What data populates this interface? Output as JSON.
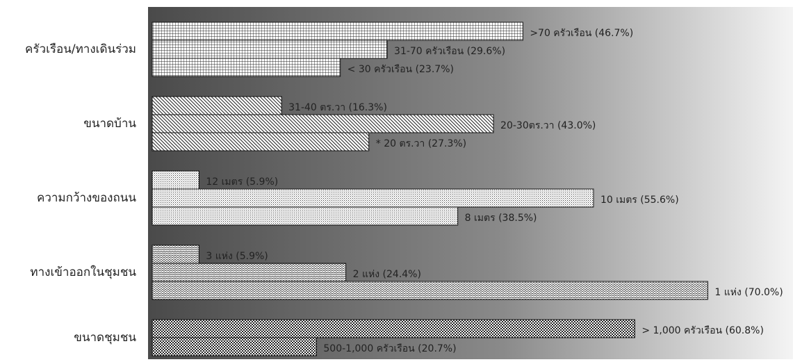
{
  "chart_data": {
    "type": "bar",
    "orientation": "horizontal",
    "xlim": [
      0,
      100
    ],
    "grid": false,
    "legend": "none",
    "colors": {
      "gradient_dark": "#4a4a4a",
      "gradient_mid": "#8a8a8a",
      "gradient_light": "#f4f4f4",
      "bar_fill": "#ffffff",
      "bar_stroke": "#111111",
      "text": "#222222"
    },
    "categories": [
      {
        "label": "ครัวเรือน/ทางเดินร่วม",
        "pattern": "grid",
        "bars": [
          {
            "label": ">70 ครัวเรือน (46.7%)",
            "value": 46.7
          },
          {
            "label": "31-70 ครัวเรือน (29.6%)",
            "value": 29.6
          },
          {
            "label": "< 30 ครัวเรือน (23.7%)",
            "value": 23.7
          }
        ]
      },
      {
        "label": "ขนาดบ้าน",
        "pattern": "diagonal",
        "bars": [
          {
            "label": "31-40 ตร.วา (16.3%)",
            "value": 16.3
          },
          {
            "label": "20-30ตร.วา (43.0%)",
            "value": 43.0
          },
          {
            "label": "* 20 ตร.วา (27.3%)",
            "value": 27.3
          }
        ]
      },
      {
        "label": "ความกว้างของถนน",
        "pattern": "dots",
        "bars": [
          {
            "label": "12 เมตร (5.9%)",
            "value": 5.9
          },
          {
            "label": "10 เมตร (55.6%)",
            "value": 55.6
          },
          {
            "label": "8 เมตร (38.5%)",
            "value": 38.5
          }
        ]
      },
      {
        "label": "ทางเข้าออกในชุมชน",
        "pattern": "zigzag",
        "bars": [
          {
            "label": "3 แห่ง (5.9%)",
            "value": 5.9
          },
          {
            "label": "2 แห่ง (24.4%)",
            "value": 24.4
          },
          {
            "label": "1 แห่ง (70.0%)",
            "value": 70.0
          }
        ]
      },
      {
        "label": "ขนาดชุมชน",
        "pattern": "checker",
        "bars": [
          {
            "label": "> 1,000 ครัวเรือน (60.8%)",
            "value": 60.8
          },
          {
            "label": "500-1,000 ครัวเรือน (20.7%)",
            "value": 20.7
          }
        ]
      }
    ]
  }
}
